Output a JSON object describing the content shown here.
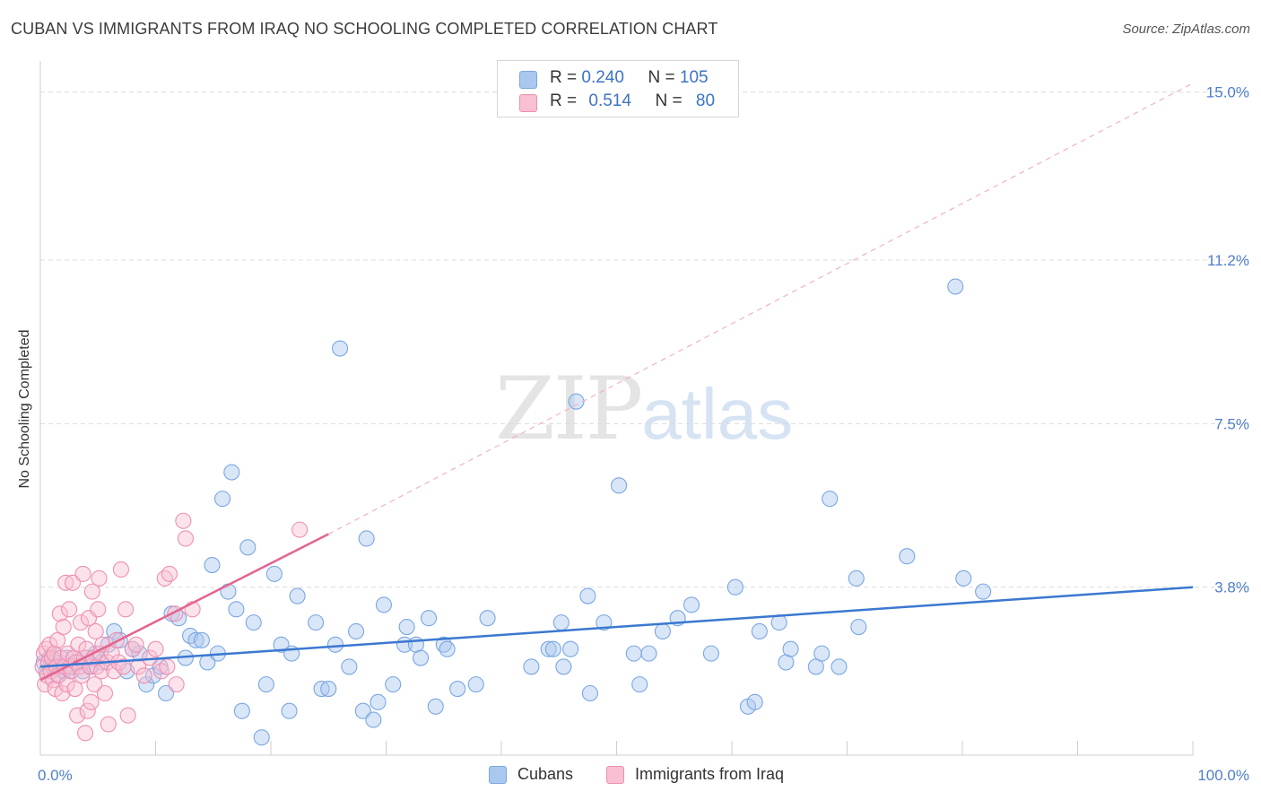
{
  "title": "CUBAN VS IMMIGRANTS FROM IRAQ NO SCHOOLING COMPLETED CORRELATION CHART",
  "source": "Source: ZipAtlas.com",
  "watermark": {
    "zip": "ZIP",
    "atlas": "atlas"
  },
  "legend": {
    "rows": [
      {
        "r_label": "R =",
        "r_value": "0.240",
        "n_label": "N =",
        "n_value": "105",
        "color": "#aac8ef",
        "border": "#7aa7e0"
      },
      {
        "r_label": "R =",
        "r_value": "0.514",
        "n_label": "N =",
        "n_value": "80",
        "color": "#f9c0d2",
        "border": "#ee8fb0"
      }
    ]
  },
  "bottom_legend": [
    {
      "label": "Cubans",
      "color": "#aac8ef",
      "border": "#7aa7e0"
    },
    {
      "label": "Immigrants from Iraq",
      "color": "#f9c0d2",
      "border": "#ee8fb0"
    }
  ],
  "chart_data": {
    "type": "scatter",
    "title": "CUBAN VS IMMIGRANTS FROM IRAQ NO SCHOOLING COMPLETED CORRELATION CHART",
    "xlabel": "",
    "ylabel": "No Schooling Completed",
    "xlim": [
      0,
      100
    ],
    "ylim": [
      0,
      15.5
    ],
    "x_tick_labels": [
      "0.0%",
      "100.0%"
    ],
    "y_ticks": [
      3.8,
      7.5,
      11.2,
      15.0
    ],
    "y_tick_labels": [
      "3.8%",
      "7.5%",
      "11.2%",
      "15.0%"
    ],
    "grid": true,
    "colors": {
      "cubans": "#3b78d0",
      "iraq": "#e4648f"
    },
    "series": [
      {
        "name": "Cubans",
        "r": 0.24,
        "n": 105,
        "trend": {
          "x": [
            0,
            100
          ],
          "y": [
            2.0,
            3.8
          ]
        },
        "points": [
          [
            0.3,
            2.1
          ],
          [
            0.5,
            1.9
          ],
          [
            0.8,
            2.2
          ],
          [
            1.0,
            2.0
          ],
          [
            1.2,
            2.3
          ],
          [
            1.5,
            1.8
          ],
          [
            1.7,
            2.1
          ],
          [
            2.0,
            1.9
          ],
          [
            2.3,
            2.2
          ],
          [
            2.6,
            1.9
          ],
          [
            2.9,
            2.0
          ],
          [
            3.3,
            2.1
          ],
          [
            3.7,
            1.9
          ],
          [
            4.0,
            2.2
          ],
          [
            4.4,
            2.0
          ],
          [
            4.8,
            2.3
          ],
          [
            5.3,
            2.1
          ],
          [
            5.9,
            2.5
          ],
          [
            6.4,
            2.8
          ],
          [
            6.9,
            2.6
          ],
          [
            7.5,
            1.9
          ],
          [
            8.0,
            2.4
          ],
          [
            8.6,
            2.3
          ],
          [
            9.2,
            1.6
          ],
          [
            9.8,
            1.8
          ],
          [
            10.4,
            2.0
          ],
          [
            10.9,
            1.4
          ],
          [
            11.4,
            3.2
          ],
          [
            12.0,
            3.1
          ],
          [
            12.6,
            2.2
          ],
          [
            13.0,
            2.7
          ],
          [
            13.5,
            2.6
          ],
          [
            14.0,
            2.6
          ],
          [
            14.5,
            2.1
          ],
          [
            14.9,
            4.3
          ],
          [
            15.4,
            2.3
          ],
          [
            15.8,
            5.8
          ],
          [
            16.3,
            3.7
          ],
          [
            16.6,
            6.4
          ],
          [
            17.0,
            3.3
          ],
          [
            17.5,
            1.0
          ],
          [
            18.0,
            4.7
          ],
          [
            18.5,
            3.0
          ],
          [
            19.2,
            0.4
          ],
          [
            19.6,
            1.6
          ],
          [
            20.3,
            4.1
          ],
          [
            20.9,
            2.5
          ],
          [
            21.6,
            1.0
          ],
          [
            21.8,
            2.3
          ],
          [
            22.3,
            3.6
          ],
          [
            23.9,
            3.0
          ],
          [
            24.4,
            1.5
          ],
          [
            25.0,
            1.5
          ],
          [
            25.6,
            2.5
          ],
          [
            26.0,
            9.2
          ],
          [
            26.8,
            2.0
          ],
          [
            27.4,
            2.8
          ],
          [
            28.0,
            1.0
          ],
          [
            28.3,
            4.9
          ],
          [
            28.9,
            0.8
          ],
          [
            29.3,
            1.2
          ],
          [
            29.8,
            3.4
          ],
          [
            30.6,
            1.6
          ],
          [
            31.6,
            2.5
          ],
          [
            31.8,
            2.9
          ],
          [
            32.6,
            2.5
          ],
          [
            33.0,
            2.2
          ],
          [
            33.7,
            3.1
          ],
          [
            34.3,
            1.1
          ],
          [
            35.0,
            2.5
          ],
          [
            35.3,
            2.4
          ],
          [
            36.2,
            1.5
          ],
          [
            37.8,
            1.6
          ],
          [
            38.8,
            3.1
          ],
          [
            42.6,
            2.0
          ],
          [
            44.1,
            2.4
          ],
          [
            44.5,
            2.4
          ],
          [
            45.2,
            3.0
          ],
          [
            45.4,
            2.0
          ],
          [
            46.0,
            2.4
          ],
          [
            46.5,
            8.0
          ],
          [
            47.5,
            3.6
          ],
          [
            47.7,
            1.4
          ],
          [
            48.9,
            3.0
          ],
          [
            50.2,
            6.1
          ],
          [
            51.5,
            2.3
          ],
          [
            52.0,
            1.6
          ],
          [
            52.8,
            2.3
          ],
          [
            54.0,
            2.8
          ],
          [
            55.3,
            3.1
          ],
          [
            56.5,
            3.4
          ],
          [
            58.2,
            2.3
          ],
          [
            60.3,
            3.8
          ],
          [
            61.4,
            1.1
          ],
          [
            62.0,
            1.2
          ],
          [
            62.4,
            2.8
          ],
          [
            64.1,
            3.0
          ],
          [
            64.7,
            2.1
          ],
          [
            65.1,
            2.4
          ],
          [
            67.3,
            2.0
          ],
          [
            67.8,
            2.3
          ],
          [
            68.5,
            5.8
          ],
          [
            69.3,
            2.0
          ],
          [
            70.8,
            4.0
          ],
          [
            71.0,
            2.9
          ],
          [
            75.2,
            4.5
          ],
          [
            79.4,
            10.6
          ],
          [
            80.1,
            4.0
          ],
          [
            81.8,
            3.7
          ]
        ]
      },
      {
        "name": "Immigrants from Iraq",
        "r": 0.514,
        "n": 80,
        "trend": {
          "x": [
            0,
            25
          ],
          "y": [
            1.7,
            5.0
          ]
        },
        "trend_extension": {
          "x": [
            25,
            100
          ],
          "y": [
            5.0,
            15.2
          ]
        },
        "points": [
          [
            0.2,
            2.0
          ],
          [
            0.3,
            2.3
          ],
          [
            0.4,
            1.6
          ],
          [
            0.5,
            2.4
          ],
          [
            0.6,
            1.8
          ],
          [
            0.7,
            2.1
          ],
          [
            0.8,
            2.5
          ],
          [
            0.9,
            1.9
          ],
          [
            1.0,
            2.2
          ],
          [
            1.1,
            1.7
          ],
          [
            1.2,
            2.3
          ],
          [
            1.3,
            1.5
          ],
          [
            1.4,
            2.0
          ],
          [
            1.5,
            2.6
          ],
          [
            1.6,
            1.8
          ],
          [
            1.7,
            3.2
          ],
          [
            1.8,
            2.2
          ],
          [
            1.9,
            1.4
          ],
          [
            2.0,
            2.9
          ],
          [
            2.1,
            2.0
          ],
          [
            2.2,
            3.9
          ],
          [
            2.3,
            1.6
          ],
          [
            2.4,
            2.3
          ],
          [
            2.5,
            3.3
          ],
          [
            2.6,
            2.0
          ],
          [
            2.7,
            1.9
          ],
          [
            2.8,
            3.9
          ],
          [
            2.9,
            2.2
          ],
          [
            3.0,
            1.5
          ],
          [
            3.1,
            2.1
          ],
          [
            3.2,
            0.9
          ],
          [
            3.3,
            2.5
          ],
          [
            3.4,
            2.0
          ],
          [
            3.5,
            3.0
          ],
          [
            3.6,
            1.8
          ],
          [
            3.7,
            4.1
          ],
          [
            3.8,
            2.2
          ],
          [
            3.9,
            0.5
          ],
          [
            4.0,
            2.4
          ],
          [
            4.1,
            1.0
          ],
          [
            4.2,
            3.1
          ],
          [
            4.3,
            2.0
          ],
          [
            4.4,
            1.2
          ],
          [
            4.5,
            3.7
          ],
          [
            4.6,
            2.2
          ],
          [
            4.7,
            1.6
          ],
          [
            4.8,
            2.8
          ],
          [
            4.9,
            2.0
          ],
          [
            5.0,
            3.3
          ],
          [
            5.1,
            4.0
          ],
          [
            5.2,
            2.3
          ],
          [
            5.3,
            1.9
          ],
          [
            5.4,
            2.5
          ],
          [
            5.6,
            1.4
          ],
          [
            5.8,
            2.1
          ],
          [
            5.9,
            0.7
          ],
          [
            6.2,
            2.3
          ],
          [
            6.4,
            1.9
          ],
          [
            6.6,
            2.6
          ],
          [
            6.8,
            2.1
          ],
          [
            7.0,
            4.2
          ],
          [
            7.2,
            2.0
          ],
          [
            7.4,
            3.3
          ],
          [
            7.6,
            0.9
          ],
          [
            8.0,
            2.4
          ],
          [
            8.5,
            2.0
          ],
          [
            9.0,
            1.8
          ],
          [
            9.5,
            2.2
          ],
          [
            10.0,
            2.4
          ],
          [
            10.5,
            1.9
          ],
          [
            10.8,
            4.0
          ],
          [
            11.0,
            2.0
          ],
          [
            11.2,
            4.1
          ],
          [
            11.7,
            3.2
          ],
          [
            11.8,
            1.6
          ],
          [
            12.4,
            5.3
          ],
          [
            12.6,
            4.9
          ],
          [
            13.2,
            3.3
          ],
          [
            22.5,
            5.1
          ],
          [
            8.3,
            2.5
          ]
        ]
      }
    ]
  }
}
